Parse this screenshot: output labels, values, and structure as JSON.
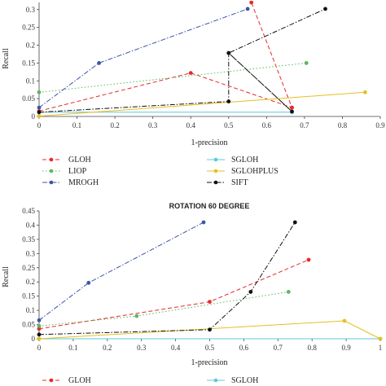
{
  "chart_data": [
    {
      "type": "line",
      "title": "",
      "xlabel": "1-precision",
      "ylabel": "Recall",
      "xlim": [
        0,
        0.9
      ],
      "ylim": [
        0,
        0.32
      ],
      "xticks": [
        "0",
        "0.1",
        "0.2",
        "0.3",
        "0.4",
        "0.5",
        "0.6",
        "0.7",
        "0.8",
        "0.9"
      ],
      "xtick_values": [
        0,
        0.1,
        0.2,
        0.3,
        0.4,
        0.5,
        0.6,
        0.7,
        0.8,
        0.9
      ],
      "yticks": [
        "0",
        "0.05",
        "0.1",
        "0.15",
        "0.2",
        "0.25",
        "0.3"
      ],
      "ytick_values": [
        0,
        0.05,
        0.1,
        0.15,
        0.2,
        0.25,
        0.3
      ],
      "series": [
        {
          "name": "GLOH",
          "color": "#e8282a",
          "dash": "5,3",
          "x": [
            0,
            0.4,
            0.667,
            0.667,
            0.56
          ],
          "y": [
            0.015,
            0.122,
            0.025,
            0.025,
            0.32
          ]
        },
        {
          "name": "LIOP",
          "color": "#5cb85c",
          "dash": "1.5,2.5",
          "x": [
            0,
            0.705
          ],
          "y": [
            0.068,
            0.15
          ]
        },
        {
          "name": "MROGH",
          "color": "#3b55a8",
          "dash": "6,2,1.5,2",
          "x": [
            0,
            0.158,
            0.55
          ],
          "y": [
            0.025,
            0.15,
            0.302
          ]
        },
        {
          "name": "SGLOH",
          "color": "#5fc8d8",
          "dash": "",
          "x": [
            0,
            0.667
          ],
          "y": [
            0.012,
            0.012
          ]
        },
        {
          "name": "SGLOHPLUS",
          "color": "#e6c020",
          "dash": "",
          "x": [
            0,
            0.86
          ],
          "y": [
            0.001,
            0.068
          ]
        },
        {
          "name": "SIFT",
          "color": "#111111",
          "dash": "6,2,1.5,2",
          "x": [
            0,
            0.5,
            0.5,
            0.667,
            0.5,
            0.755
          ],
          "y": [
            0.012,
            0.042,
            0.178,
            0.014,
            0.178,
            0.302
          ]
        }
      ],
      "legend_position": "bottom",
      "legend": [
        "GLOH",
        "LIOP",
        "MROGH",
        "SGLOH",
        "SGLOHPLUS",
        "SIFT"
      ]
    },
    {
      "type": "line",
      "title": "ROTATION 60 DEGREE",
      "xlabel": "1-precision",
      "ylabel": "Recall",
      "xlim": [
        0,
        1
      ],
      "ylim": [
        0,
        0.45
      ],
      "xticks": [
        "0",
        "0.1",
        "0.2",
        "0.3",
        "0.4",
        "0.5",
        "0.6",
        "0.7",
        "0.8",
        "0.9",
        "1"
      ],
      "xtick_values": [
        0,
        0.1,
        0.2,
        0.3,
        0.4,
        0.5,
        0.6,
        0.7,
        0.8,
        0.9,
        1
      ],
      "yticks": [
        "0",
        "0.05",
        "0.1",
        "0.15",
        "0.2",
        "0.25",
        "0.3",
        "0.35",
        "0.4",
        "0.45"
      ],
      "ytick_values": [
        0,
        0.05,
        0.1,
        0.15,
        0.2,
        0.25,
        0.3,
        0.35,
        0.4,
        0.45
      ],
      "series": [
        {
          "name": "GLOH",
          "color": "#e8282a",
          "dash": "5,3",
          "x": [
            0,
            0.5,
            0.79
          ],
          "y": [
            0.035,
            0.13,
            0.278
          ]
        },
        {
          "name": "LIOP",
          "color": "#5cb85c",
          "dash": "1.5,2.5",
          "x": [
            0,
            0.286,
            0.731
          ],
          "y": [
            0.045,
            0.08,
            0.165
          ]
        },
        {
          "name": "MROGH",
          "color": "#3b55a8",
          "dash": "6,2,1.5,2",
          "x": [
            0,
            0.145,
            0.482
          ],
          "y": [
            0.065,
            0.197,
            0.41
          ]
        },
        {
          "name": "SGLOH",
          "color": "#5fc8d8",
          "dash": "",
          "x": [
            0,
            1
          ],
          "y": [
            0.0,
            0.0
          ]
        },
        {
          "name": "SGLOHPLUS",
          "color": "#e6c020",
          "dash": "",
          "x": [
            0,
            0.895,
            1
          ],
          "y": [
            0.0,
            0.063,
            0.0
          ]
        },
        {
          "name": "SIFT",
          "color": "#111111",
          "dash": "6,2,1.5,2",
          "x": [
            0,
            0.5,
            0.62,
            0.75
          ],
          "y": [
            0.015,
            0.032,
            0.165,
            0.41
          ]
        }
      ],
      "legend_position": "bottom",
      "legend": [
        "GLOH",
        "SGLOH"
      ]
    }
  ]
}
